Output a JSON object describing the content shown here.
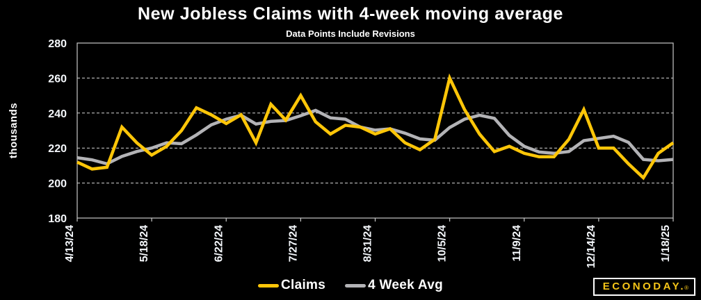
{
  "header": {
    "title": "New Jobless Claims with 4-week moving average",
    "subtitle": "Data Points Include Revisions"
  },
  "legend": {
    "items": [
      {
        "label": "Claims",
        "color": "#ffc608"
      },
      {
        "label": "4 Week Avg",
        "color": "#b3b3b6"
      }
    ]
  },
  "branding": {
    "name": "ECONODAY.",
    "reg": "®"
  },
  "colors": {
    "background": "#000000",
    "text": "#ffffff",
    "claims_line": "#ffc608",
    "average_line": "#b3b3b6",
    "frame": "#c9c9c9",
    "gridline": "#d8d8d8",
    "logo_yellow": "#f5c518"
  },
  "chart_data": {
    "type": "line",
    "title": "New Jobless Claims with 4-week moving average",
    "subtitle": "Data Points Include Revisions",
    "xlabel": "",
    "ylabel": "thousands",
    "ylim": [
      180,
      280
    ],
    "yticks": [
      180,
      200,
      220,
      240,
      260,
      280
    ],
    "grid": "horizontal-dashed",
    "legend_position": "bottom-center",
    "x_tick_every": 5,
    "x_tick_labels": [
      "4/13/24",
      "5/18/24",
      "6/22/24",
      "7/27/24",
      "8/31/24",
      "10/5/24",
      "11/9/24",
      "12/14/24",
      "1/18/25"
    ],
    "x": [
      "4/13/24",
      "4/20/24",
      "4/27/24",
      "5/4/24",
      "5/11/24",
      "5/18/24",
      "5/25/24",
      "6/1/24",
      "6/8/24",
      "6/15/24",
      "6/22/24",
      "6/29/24",
      "7/6/24",
      "7/13/24",
      "7/20/24",
      "7/27/24",
      "8/3/24",
      "8/10/24",
      "8/17/24",
      "8/24/24",
      "8/31/24",
      "9/7/24",
      "9/14/24",
      "9/21/24",
      "9/28/24",
      "10/5/24",
      "10/12/24",
      "10/19/24",
      "10/26/24",
      "11/2/24",
      "11/9/24",
      "11/16/24",
      "11/23/24",
      "11/30/24",
      "12/7/24",
      "12/14/24",
      "12/21/24",
      "12/28/24",
      "1/4/25",
      "1/11/25",
      "1/18/25"
    ],
    "series": [
      {
        "name": "Claims",
        "color": "#ffc608",
        "values": [
          212,
          208,
          209,
          232,
          223,
          216,
          221,
          230,
          243,
          239,
          234,
          239,
          223,
          245,
          236,
          250,
          235,
          228,
          233,
          232,
          228,
          231,
          223,
          219,
          225,
          260,
          242,
          228,
          218,
          221,
          217,
          215,
          215,
          225,
          242,
          220,
          220,
          211,
          203,
          217,
          223
        ]
      },
      {
        "name": "4 Week Avg",
        "color": "#b3b3b6",
        "values": [
          214.5,
          213.25,
          211,
          215.25,
          218,
          220,
          223,
          222.5,
          227.5,
          233.25,
          236.5,
          238.75,
          233.75,
          235.25,
          235.75,
          238.5,
          241.5,
          237.25,
          236.5,
          232,
          230.25,
          231,
          228.5,
          225.25,
          224.5,
          231.75,
          236.5,
          238.75,
          237,
          227.25,
          221,
          217.75,
          217,
          218,
          224.25,
          225.5,
          226.75,
          223.25,
          213.5,
          212.75,
          213.5
        ]
      }
    ]
  }
}
